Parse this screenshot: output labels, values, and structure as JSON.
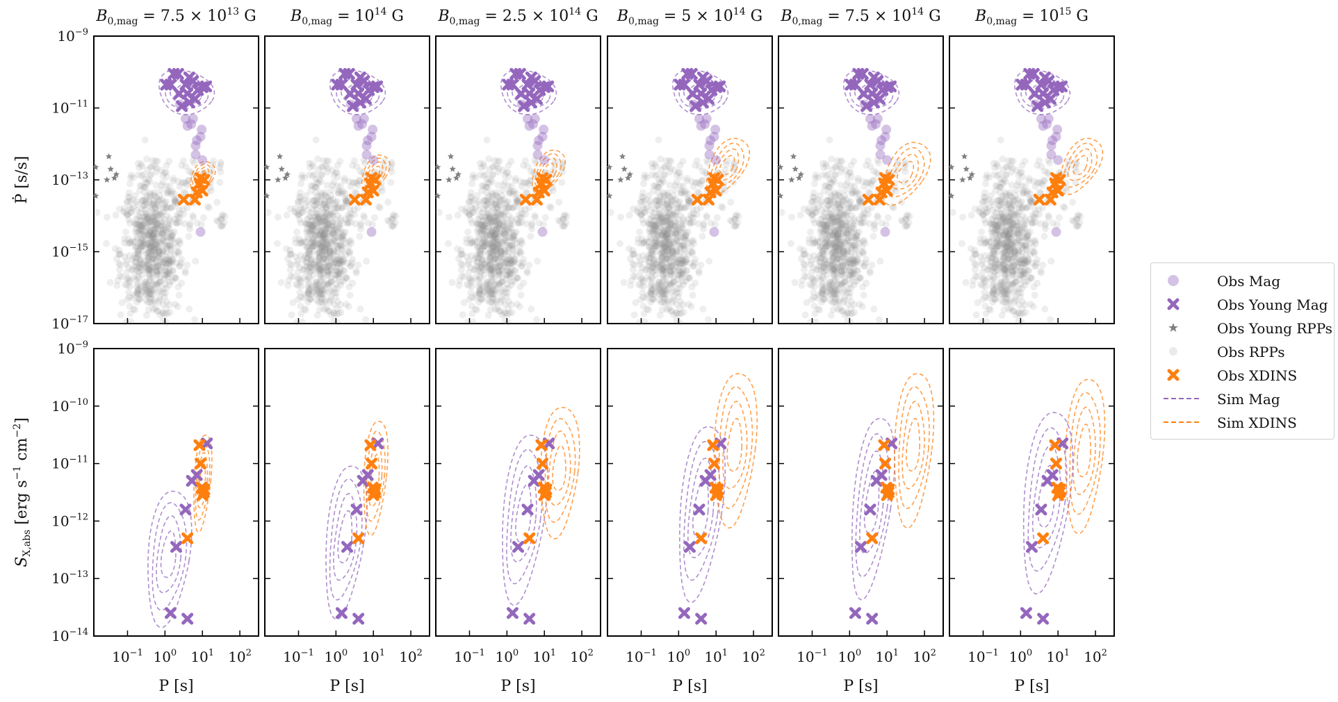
{
  "colors": {
    "mag": "#9467bd",
    "xdins": "#ff7f0e",
    "rpp": "#8c8c8c",
    "young_rpp": "#7f7f7f"
  },
  "chart_data": {
    "type": "scatter",
    "description_of_layout": "",
    "panel_titles": [
      {
        "base": "B",
        "sub": "0,mag",
        "eq": " = 7.5 × 10",
        "exp": "13",
        "unit": " G"
      },
      {
        "base": "B",
        "sub": "0,mag",
        "eq": " = 10",
        "exp": "14",
        "unit": " G"
      },
      {
        "base": "B",
        "sub": "0,mag",
        "eq": " = 2.5 × 10",
        "exp": "14",
        "unit": " G"
      },
      {
        "base": "B",
        "sub": "0,mag",
        "eq": " = 5 × 10",
        "exp": "14",
        "unit": " G"
      },
      {
        "base": "B",
        "sub": "0,mag",
        "eq": " = 7.5 × 10",
        "exp": "14",
        "unit": " G"
      },
      {
        "base": "B",
        "sub": "0,mag",
        "eq": " = 10",
        "exp": "15",
        "unit": " G"
      }
    ],
    "xlabel": "P [s]",
    "ylabel_top": "Ṗ [s/s]",
    "ylabel_bottom": {
      "base": "S",
      "sub": "X,abs",
      "rest": " [erg s",
      "exp1": "−1",
      "mid": " cm",
      "exp2": "−2",
      "end": "]"
    },
    "x_scale": "log",
    "xlim_log10": [
      -1.9,
      2.5
    ],
    "x_ticks_log10": [
      -1,
      0,
      1,
      2
    ],
    "top_row": {
      "y_scale": "log",
      "ylim_log10": [
        -17,
        -9
      ],
      "y_ticks_log10": [
        -17,
        -15,
        -13,
        -11,
        -9
      ]
    },
    "bottom_row": {
      "y_scale": "log",
      "ylim_log10": [
        -14,
        -9
      ],
      "y_ticks_log10": [
        -14,
        -13,
        -12,
        -11,
        -10,
        -9
      ]
    },
    "tick_label_base": "10",
    "observed": {
      "young_mag_pdot": [
        [
          0.03,
          -10.35
        ],
        [
          0.15,
          -10.35
        ],
        [
          0.23,
          -10.05
        ],
        [
          0.35,
          -10.05
        ],
        [
          0.55,
          -10.35
        ],
        [
          0.65,
          -10.15
        ],
        [
          0.75,
          -10.25
        ],
        [
          0.88,
          -10.5
        ],
        [
          0.38,
          -10.6
        ],
        [
          0.6,
          -10.6
        ],
        [
          0.8,
          -10.75
        ],
        [
          1.0,
          -10.42
        ],
        [
          0.45,
          -10.95
        ],
        [
          0.65,
          -10.85
        ],
        [
          1.1,
          -10.4
        ]
      ],
      "mag_pdot": [
        [
          0.4,
          -10.9
        ],
        [
          0.55,
          -11.3
        ],
        [
          0.75,
          -11.3
        ],
        [
          0.7,
          -11.45
        ],
        [
          0.95,
          -11.8
        ],
        [
          0.85,
          -11.9
        ],
        [
          0.6,
          -11.5
        ],
        [
          0.82,
          -12.05
        ],
        [
          0.98,
          -11.6
        ],
        [
          1.0,
          -12.45
        ],
        [
          0.95,
          -14.45
        ],
        [
          0.82,
          -12.3
        ]
      ],
      "xdins_pdot": [
        [
          0.5,
          -13.55
        ],
        [
          0.8,
          -13.55
        ],
        [
          0.92,
          -13.1
        ],
        [
          0.95,
          -12.95
        ],
        [
          1.0,
          -13.3
        ],
        [
          1.05,
          -13.0
        ],
        [
          0.85,
          -13.35
        ]
      ],
      "young_rpp_pdot": [
        [
          -1.5,
          -12.35
        ],
        [
          -1.45,
          -12.7
        ],
        [
          -1.35,
          -12.95
        ],
        [
          -1.3,
          -12.85
        ],
        [
          -1.55,
          -13.0
        ],
        [
          -1.85,
          -12.65
        ],
        [
          -1.85,
          -13.45
        ]
      ],
      "young_mag_sx": [
        [
          0.15,
          -13.6
        ],
        [
          0.6,
          -13.7
        ],
        [
          0.3,
          -12.45
        ],
        [
          0.55,
          -11.8
        ],
        [
          0.72,
          -11.3
        ],
        [
          0.85,
          -11.2
        ],
        [
          1.12,
          -10.65
        ]
      ],
      "xdins_sx": [
        [
          0.6,
          -12.3
        ],
        [
          0.92,
          -10.68
        ],
        [
          0.95,
          -11.0
        ],
        [
          0.98,
          -11.42
        ],
        [
          1.0,
          -11.55
        ],
        [
          1.04,
          -11.5
        ],
        [
          1.05,
          -11.45
        ]
      ]
    }
  },
  "legend": {
    "items": [
      {
        "label": "Obs Mag",
        "symbol": "circle",
        "color": "#9467bd"
      },
      {
        "label": "Obs Young Mag",
        "symbol": "cross",
        "color": "#9467bd"
      },
      {
        "label": "Obs Young RPPs",
        "symbol": "star",
        "color": "#7f7f7f"
      },
      {
        "label": "Obs RPPs",
        "symbol": "faint-circle",
        "color": "#8c8c8c"
      },
      {
        "label": "Obs XDINS",
        "symbol": "cross",
        "color": "#ff7f0e"
      },
      {
        "label": "Sim Mag",
        "symbol": "dashed",
        "color": "#9467bd"
      },
      {
        "label": "Sim XDINS",
        "symbol": "dashed",
        "color": "#ff7f0e"
      }
    ]
  }
}
